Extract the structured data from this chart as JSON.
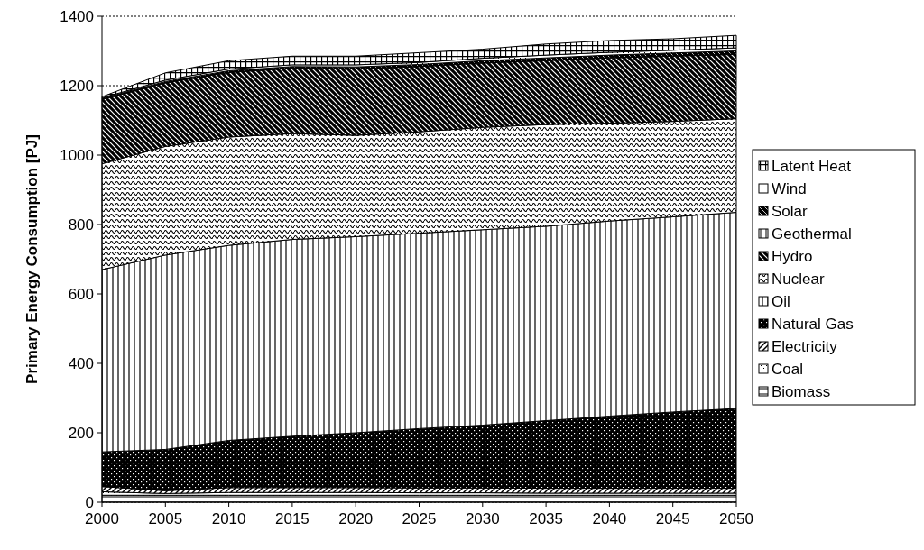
{
  "chart_data": {
    "type": "area",
    "stacked": true,
    "ylabel": "Primary Energy Consumption [PJ]",
    "x": [
      2000,
      2005,
      2010,
      2015,
      2020,
      2025,
      2030,
      2035,
      2040,
      2045,
      2050
    ],
    "xlim": [
      2000,
      2050
    ],
    "xticks": [
      2000,
      2005,
      2010,
      2015,
      2020,
      2025,
      2030,
      2035,
      2040,
      2045,
      2050
    ],
    "ylim": [
      0,
      1400
    ],
    "yticks": [
      0,
      200,
      400,
      600,
      800,
      1000,
      1200,
      1400
    ],
    "grid": "y",
    "legend": "right",
    "series": [
      {
        "name": "Biomass",
        "color": "#000000",
        "values": [
          20,
          20,
          20,
          20,
          20,
          20,
          20,
          20,
          20,
          20,
          20
        ]
      },
      {
        "name": "Coal",
        "color": "#000000",
        "values": [
          10,
          5,
          8,
          8,
          8,
          7,
          7,
          6,
          6,
          6,
          6
        ]
      },
      {
        "name": "Electricity",
        "color": "#000000",
        "values": [
          15,
          8,
          14,
          14,
          14,
          14,
          14,
          14,
          14,
          14,
          14
        ]
      },
      {
        "name": "Natural Gas",
        "color": "#000000",
        "values": [
          100,
          119,
          136,
          148,
          158,
          171,
          181,
          195,
          208,
          220,
          230
        ]
      },
      {
        "name": "Oil",
        "color": "#000000",
        "values": [
          525,
          560,
          562,
          567,
          565,
          563,
          563,
          560,
          562,
          562,
          565
        ]
      },
      {
        "name": "Nuclear",
        "color": "#000000",
        "values": [
          305,
          313,
          312,
          305,
          292,
          292,
          295,
          293,
          282,
          275,
          270
        ]
      },
      {
        "name": "Hydro",
        "color": "#000000",
        "values": [
          185,
          183,
          186,
          188,
          191,
          188,
          185,
          184,
          188,
          188,
          185
        ]
      },
      {
        "name": "Geothermal",
        "color": "#000000",
        "values": [
          1,
          1,
          1,
          1,
          1,
          1,
          1,
          1,
          1,
          1,
          1
        ]
      },
      {
        "name": "Solar",
        "color": "#000000",
        "values": [
          2,
          3,
          4,
          4,
          5,
          5,
          6,
          7,
          7,
          8,
          9
        ]
      },
      {
        "name": "Wind",
        "color": "#000000",
        "values": [
          2,
          4,
          5,
          5,
          6,
          6,
          7,
          8,
          8,
          8,
          9
        ]
      },
      {
        "name": "Latent Heat",
        "color": "#000000",
        "values": [
          3,
          21,
          24,
          25,
          25,
          28,
          26,
          32,
          34,
          33,
          36
        ]
      }
    ]
  }
}
